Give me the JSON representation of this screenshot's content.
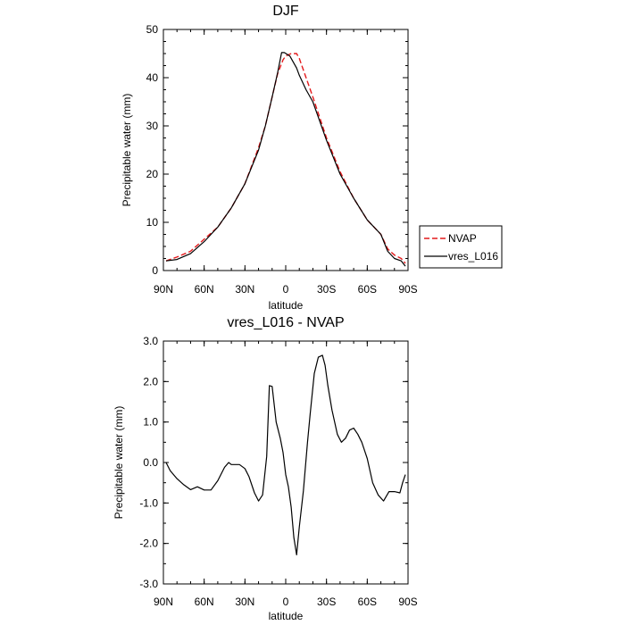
{
  "chart_data": [
    {
      "type": "line",
      "title": "DJF",
      "xlabel": "latitude",
      "ylabel": "Precipitable water (mm)",
      "xlim": [
        90,
        -90
      ],
      "ylim": [
        0,
        50
      ],
      "x_tick_labels": [
        "90N",
        "60N",
        "30N",
        "0",
        "30S",
        "60S",
        "90S"
      ],
      "y_tick_labels": [
        "0",
        "10",
        "20",
        "30",
        "40",
        "50"
      ],
      "legend_position": "right",
      "series": [
        {
          "name": "NVAP",
          "color": "#e41a1c",
          "dash": "dashed",
          "x": [
            88,
            80,
            70,
            60,
            50,
            40,
            30,
            20,
            15,
            10,
            6,
            2,
            0,
            -4,
            -8,
            -10,
            -15,
            -20,
            -30,
            -40,
            -50,
            -60,
            -70,
            -75,
            -80,
            -85,
            -88
          ],
          "y": [
            2,
            2.8,
            4,
            6.5,
            9,
            13,
            18,
            25.5,
            30,
            36,
            40.8,
            43.7,
            44.5,
            45,
            45,
            44,
            40,
            36,
            27.5,
            20.5,
            15,
            10.5,
            7.5,
            4.5,
            3.2,
            2.5,
            1.5
          ]
        },
        {
          "name": "vres_L016",
          "color": "#000000",
          "dash": "solid",
          "x": [
            88,
            80,
            70,
            60,
            50,
            40,
            30,
            20,
            15,
            10,
            6,
            3,
            1,
            -3,
            -8,
            -10,
            -15,
            -20,
            -30,
            -40,
            -50,
            -60,
            -70,
            -75,
            -80,
            -85,
            -88
          ],
          "y": [
            2,
            2.3,
            3.5,
            6,
            9,
            13,
            18,
            25,
            30,
            36,
            41,
            45.2,
            45.2,
            44.5,
            42,
            40.5,
            37.5,
            35,
            27,
            20,
            15,
            10.5,
            7.5,
            4,
            2.5,
            2,
            0.9
          ]
        }
      ]
    },
    {
      "type": "line",
      "title": "vres_L016 - NVAP",
      "xlabel": "latitude",
      "ylabel": "Precipitable water (mm)",
      "xlim": [
        90,
        -90
      ],
      "ylim": [
        -3,
        3
      ],
      "x_tick_labels": [
        "90N",
        "60N",
        "30N",
        "0",
        "30S",
        "60S",
        "90S"
      ],
      "y_tick_labels": [
        "3.0",
        "2.0",
        "1.0",
        "0.0",
        "-1.0",
        "-2.0",
        "-3.0"
      ],
      "series": [
        {
          "color": "#000000",
          "dash": "solid",
          "x": [
            88,
            85,
            80,
            75,
            70,
            65,
            60,
            55,
            50,
            45,
            42,
            40,
            37,
            34,
            30,
            27,
            23,
            20,
            17,
            14,
            12,
            10,
            7,
            4,
            2,
            0,
            -2,
            -4,
            -6,
            -8,
            -10,
            -13,
            -16,
            -18,
            -21,
            -24,
            -27,
            -29,
            -31,
            -34,
            -38,
            -41,
            -44,
            -47,
            -50,
            -53,
            -56,
            -60,
            -64,
            -68,
            -72,
            -76,
            -80,
            -84,
            -86,
            -88
          ],
          "y": [
            0,
            -0.2,
            -0.4,
            -0.55,
            -0.67,
            -0.6,
            -0.68,
            -0.68,
            -0.45,
            -0.12,
            0,
            -0.05,
            -0.05,
            -0.05,
            -0.15,
            -0.35,
            -0.75,
            -0.95,
            -0.8,
            0.15,
            1.9,
            1.88,
            1.0,
            0.6,
            0.25,
            -0.3,
            -0.6,
            -1.1,
            -1.85,
            -2.28,
            -1.6,
            -0.7,
            0.5,
            1.2,
            2.2,
            2.6,
            2.65,
            2.4,
            1.9,
            1.3,
            0.7,
            0.5,
            0.6,
            0.8,
            0.85,
            0.7,
            0.5,
            0.1,
            -0.5,
            -0.8,
            -0.95,
            -0.72,
            -0.72,
            -0.75,
            -0.5,
            -0.3
          ]
        }
      ]
    }
  ]
}
